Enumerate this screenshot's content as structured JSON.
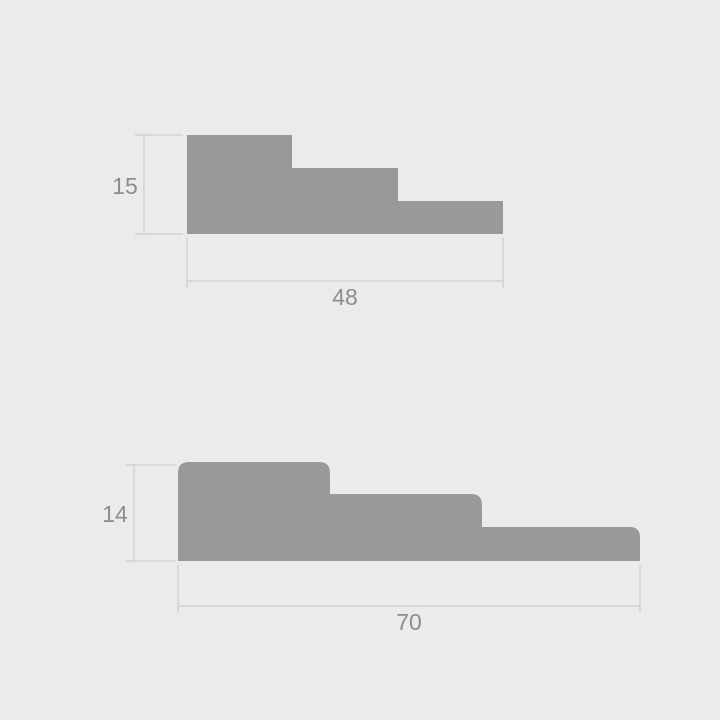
{
  "colors": {
    "background": "#ebebed",
    "profile_fill": "#999999",
    "dimension_line": "#c4c4c6",
    "dimension_text": "#8d8d8f"
  },
  "profiles": [
    {
      "height_label": "15",
      "width_label": "48"
    },
    {
      "height_label": "14",
      "width_label": "70"
    }
  ]
}
